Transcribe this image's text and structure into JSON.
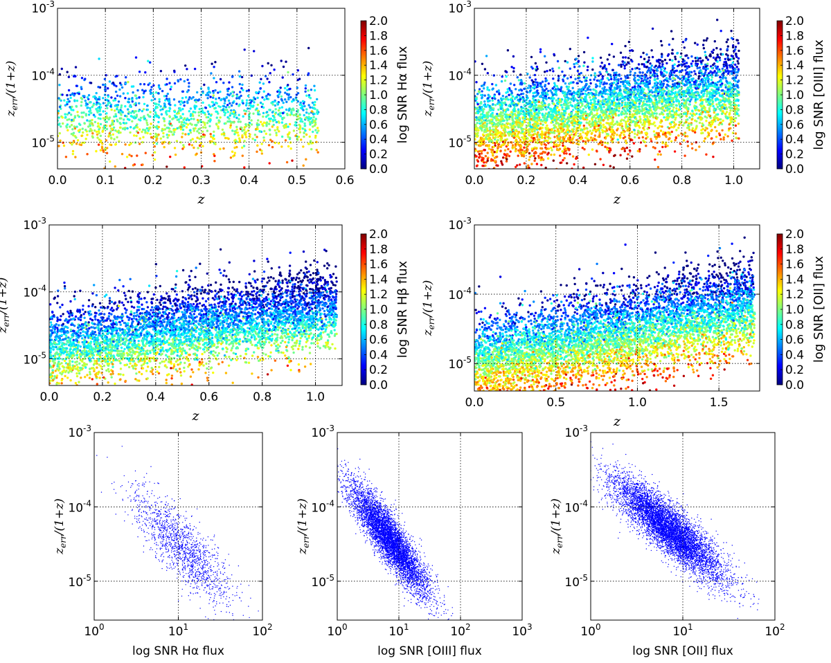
{
  "colormap": [
    "#00007f",
    "#0000ff",
    "#007fff",
    "#00ffff",
    "#7fff7f",
    "#ffff00",
    "#ff7f00",
    "#ff0000",
    "#7f0000"
  ],
  "point_color_small": "#0000ff",
  "chart_data": [
    {
      "id": "top-left",
      "type": "scatter",
      "color_by": "log SNR Hα flux",
      "xlabel": "z",
      "ylabel": "z_err/(1+z)",
      "xlim": [
        0.0,
        0.6
      ],
      "xticks": [
        "0.0",
        "0.1",
        "0.2",
        "0.3",
        "0.4",
        "0.5",
        "0.6"
      ],
      "ylim": [
        4e-06,
        0.001
      ],
      "yscale": "log",
      "colorbar": {
        "label": "log SNR Hα flux",
        "range": [
          0.0,
          2.0
        ],
        "ticks": [
          "0.0",
          "0.2",
          "0.4",
          "0.6",
          "0.8",
          "1.0",
          "1.2",
          "1.4",
          "1.6",
          "1.8",
          "2.0"
        ]
      },
      "grid": true,
      "sample": {
        "n": 1500,
        "x_range": [
          0.0,
          0.545
        ],
        "trend_slope": 0.0,
        "base_center": -4.6,
        "snr_mean": 0.85,
        "snr_sd": 0.35,
        "snr_slope": 0.0,
        "scatter": 0.15
      }
    },
    {
      "id": "top-right",
      "type": "scatter",
      "color_by": "log SNR [OIII] flux",
      "xlabel": "z",
      "ylabel": "z_err/(1+z)",
      "xlim": [
        0.0,
        1.1
      ],
      "xticks": [
        "0.0",
        "0.2",
        "0.4",
        "0.6",
        "0.8",
        "1.0"
      ],
      "ylim": [
        4e-06,
        0.001
      ],
      "yscale": "log",
      "colorbar": {
        "label": "log SNR [OIII] flux",
        "range": [
          0.0,
          2.0
        ],
        "ticks": [
          "0.0",
          "0.2",
          "0.4",
          "0.6",
          "0.8",
          "1.0",
          "1.2",
          "1.4",
          "1.6",
          "1.8",
          "2.0"
        ]
      },
      "grid": true,
      "sample": {
        "n": 4500,
        "x_range": [
          0.0,
          1.02
        ],
        "trend_slope": 0.3,
        "base_center": -4.65,
        "snr_mean": 0.9,
        "snr_sd": 0.4,
        "snr_slope": -0.4,
        "scatter": 0.14
      }
    },
    {
      "id": "middle-left",
      "type": "scatter",
      "color_by": "log SNR Hβ flux",
      "xlabel": "z",
      "ylabel": "z_err/(1+z)",
      "xlim": [
        0.0,
        1.1
      ],
      "xticks": [
        "0.0",
        "0.2",
        "0.4",
        "0.6",
        "0.8",
        "1.0"
      ],
      "ylim": [
        4e-06,
        0.001
      ],
      "yscale": "log",
      "colorbar": {
        "label": "log SNR Hβ flux",
        "range": [
          0.0,
          2.0
        ],
        "ticks": [
          "0.0",
          "0.2",
          "0.4",
          "0.6",
          "0.8",
          "1.0",
          "1.2",
          "1.4",
          "1.6",
          "1.8",
          "2.0"
        ]
      },
      "grid": true,
      "sample": {
        "n": 4500,
        "x_range": [
          0.0,
          1.08
        ],
        "trend_slope": 0.4,
        "base_center": -4.75,
        "snr_mean": 0.65,
        "snr_sd": 0.35,
        "snr_slope": -0.3,
        "scatter": 0.14
      }
    },
    {
      "id": "middle-right",
      "type": "scatter",
      "color_by": "log SNR [OII] flux",
      "xlabel": "z",
      "ylabel": "z_err/(1+z)",
      "xlim": [
        0.0,
        1.75
      ],
      "xticks": [
        "0.0",
        "0.5",
        "1.0",
        "1.5"
      ],
      "ylim": [
        4e-06,
        0.001
      ],
      "yscale": "log",
      "colorbar": {
        "label": "log SNR [OII] flux",
        "range": [
          0.0,
          2.0
        ],
        "ticks": [
          "0.0",
          "0.2",
          "0.4",
          "0.6",
          "0.8",
          "1.0",
          "1.2",
          "1.4",
          "1.6",
          "1.8",
          "2.0"
        ]
      },
      "grid": true,
      "sample": {
        "n": 5500,
        "x_range": [
          0.0,
          1.72
        ],
        "trend_slope": 0.6,
        "base_center": -4.9,
        "snr_mean": 0.85,
        "snr_sd": 0.4,
        "snr_slope": -0.35,
        "scatter": 0.14
      }
    },
    {
      "id": "bottom-left",
      "type": "scatter",
      "xlabel": "log SNR Hα  flux",
      "ylabel": "z_err/(1+z)",
      "xlim": [
        1,
        100
      ],
      "xscale": "log",
      "xticks": [
        "10^0",
        "10^1",
        "10^2"
      ],
      "ylim": [
        3e-06,
        0.001
      ],
      "yscale": "log",
      "grid": true,
      "sample": {
        "n": 1400,
        "logx_mean": 1.05,
        "logx_sd": 0.3,
        "slope": -1.1,
        "intercept": -3.4,
        "scatter": 0.22
      }
    },
    {
      "id": "bottom-middle",
      "type": "scatter",
      "xlabel": "log SNR [OIII] flux",
      "ylabel": "z_err/(1+z)",
      "xlim": [
        1,
        1000
      ],
      "xscale": "log",
      "xticks": [
        "10^0",
        "10^1",
        "10^2",
        "10^3"
      ],
      "ylim": [
        3e-06,
        0.001
      ],
      "yscale": "log",
      "grid": true,
      "sample": {
        "n": 5500,
        "logx_mean": 0.85,
        "logx_sd": 0.32,
        "slope": -1.05,
        "intercept": -3.55,
        "scatter": 0.17
      }
    },
    {
      "id": "bottom-right",
      "type": "scatter",
      "xlabel": "log SNR [OII] flux",
      "ylabel": "z_err/(1+z)",
      "xlim": [
        1,
        100
      ],
      "xscale": "log",
      "xticks": [
        "10^0",
        "10^1",
        "10^2"
      ],
      "ylim": [
        3e-06,
        0.001
      ],
      "yscale": "log",
      "grid": true,
      "sample": {
        "n": 6500,
        "logx_mean": 0.85,
        "logx_sd": 0.3,
        "slope": -1.0,
        "intercept": -3.45,
        "scatter": 0.17
      }
    }
  ]
}
